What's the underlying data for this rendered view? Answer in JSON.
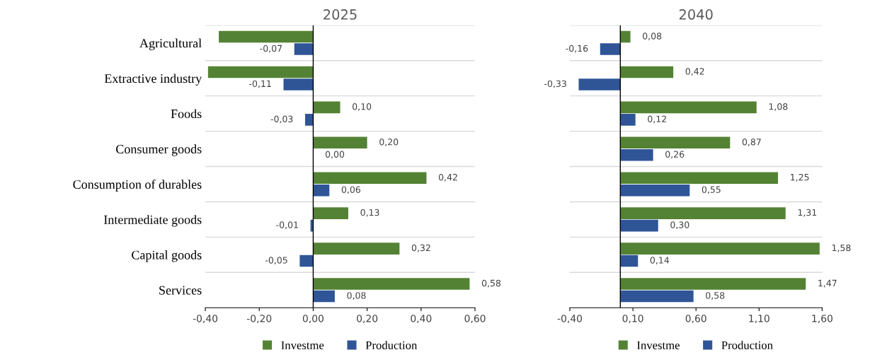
{
  "chart_data": [
    {
      "type": "bar",
      "orientation": "horizontal",
      "title": "2025",
      "categories": [
        "Agricultural",
        "Extractive industry",
        "Foods",
        "Consumer goods",
        "Consumption of durables",
        "Intermediate goods",
        "Capital goods",
        "Services"
      ],
      "series": [
        {
          "name": "Investme",
          "color": "#548235",
          "values": [
            -0.35,
            -0.39,
            0.1,
            0.2,
            0.42,
            0.13,
            0.32,
            0.58
          ],
          "value_labels": [
            null,
            null,
            "0,10",
            "0,20",
            "0,42",
            "0,13",
            "0,32",
            "0,58"
          ]
        },
        {
          "name": "Production",
          "color": "#2f5597",
          "values": [
            -0.07,
            -0.11,
            -0.03,
            0.0,
            0.06,
            -0.01,
            -0.05,
            0.08
          ],
          "value_labels": [
            "-0,07",
            "-0,11",
            "-0,03",
            "0,00",
            "0,06",
            "-0,01",
            "-0,05",
            "0,08"
          ]
        }
      ],
      "xlim": [
        -0.4,
        0.6
      ],
      "xticks": [
        {
          "value": -0.4,
          "label": "-0,40"
        },
        {
          "value": -0.2,
          "label": "-0,20"
        },
        {
          "value": 0,
          "label": "0,00"
        },
        {
          "value": 0.2,
          "label": "0,20"
        },
        {
          "value": 0.4,
          "label": "0,40"
        },
        {
          "value": 0.6,
          "label": "0,60"
        }
      ],
      "grid": "y",
      "legend": "bottom"
    },
    {
      "type": "bar",
      "orientation": "horizontal",
      "title": "2040",
      "categories": [
        null,
        null,
        null,
        null,
        null,
        null,
        null,
        null
      ],
      "series": [
        {
          "name": "Investme",
          "color": "#548235",
          "values": [
            0.08,
            0.42,
            1.08,
            0.87,
            1.25,
            1.31,
            1.58,
            1.47
          ],
          "value_labels": [
            "0,08",
            "0,42",
            "1,08",
            "0,87",
            "1,25",
            "1,31",
            "1,58",
            "1,47"
          ]
        },
        {
          "name": "Production",
          "color": "#2f5597",
          "values": [
            -0.16,
            -0.33,
            0.12,
            0.26,
            0.55,
            0.3,
            0.14,
            0.58
          ],
          "value_labels": [
            "-0,16",
            "-0,33",
            "0,12",
            "0,26",
            "0,55",
            "0,30",
            "0,14",
            "0,58"
          ]
        }
      ],
      "xlim": [
        -0.4,
        1.6
      ],
      "xticks": [
        {
          "value": -0.4,
          "label": "-0,40"
        },
        {
          "value": 0.1,
          "label": "0,10"
        },
        {
          "value": 0.6,
          "label": "0,60"
        },
        {
          "value": 1.1,
          "label": "1,10"
        },
        {
          "value": 1.6,
          "label": "1,60"
        }
      ],
      "grid": "y",
      "legend": "bottom"
    }
  ]
}
